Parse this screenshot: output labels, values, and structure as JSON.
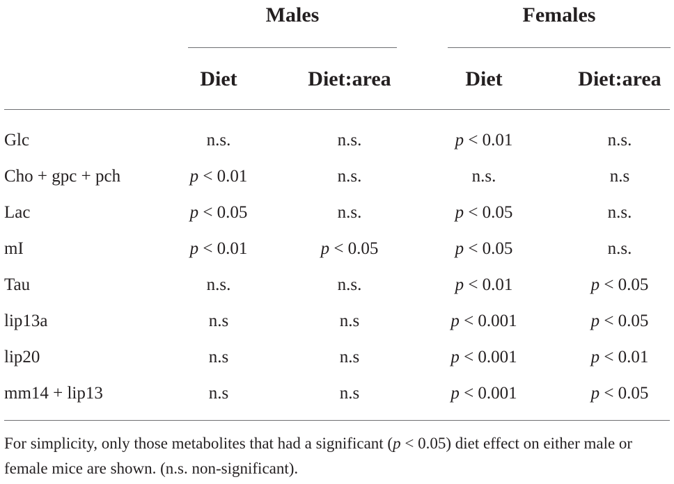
{
  "header": {
    "groups": [
      "Males",
      "Females"
    ],
    "subcolumns": [
      "Diet",
      "Diet:area",
      "Diet",
      "Diet:area"
    ]
  },
  "rows": [
    {
      "metabolite": "Glc",
      "cells": [
        "n.s.",
        "n.s.",
        "p < 0.01",
        "n.s."
      ]
    },
    {
      "metabolite": "Cho + gpc + pch",
      "cells": [
        "p < 0.01",
        "n.s.",
        "n.s.",
        "n.s"
      ]
    },
    {
      "metabolite": "Lac",
      "cells": [
        "p < 0.05",
        "n.s.",
        "p < 0.05",
        "n.s."
      ]
    },
    {
      "metabolite": "mI",
      "cells": [
        "p < 0.01",
        "p < 0.05",
        "p < 0.05",
        "n.s."
      ]
    },
    {
      "metabolite": "Tau",
      "cells": [
        "n.s.",
        "n.s.",
        "p < 0.01",
        "p < 0.05"
      ]
    },
    {
      "metabolite": "lip13a",
      "cells": [
        "n.s",
        "n.s",
        "p < 0.001",
        "p < 0.05"
      ]
    },
    {
      "metabolite": "lip20",
      "cells": [
        "n.s",
        "n.s",
        "p < 0.001",
        "p < 0.01"
      ]
    },
    {
      "metabolite": "mm14 + lip13",
      "cells": [
        "n.s",
        "n.s",
        "p < 0.001",
        "p < 0.05"
      ]
    }
  ],
  "footnote": "For simplicity, only those metabolites that had a significant (p < 0.05) diet effect on either male or female mice are shown. (n.s. non-significant)."
}
